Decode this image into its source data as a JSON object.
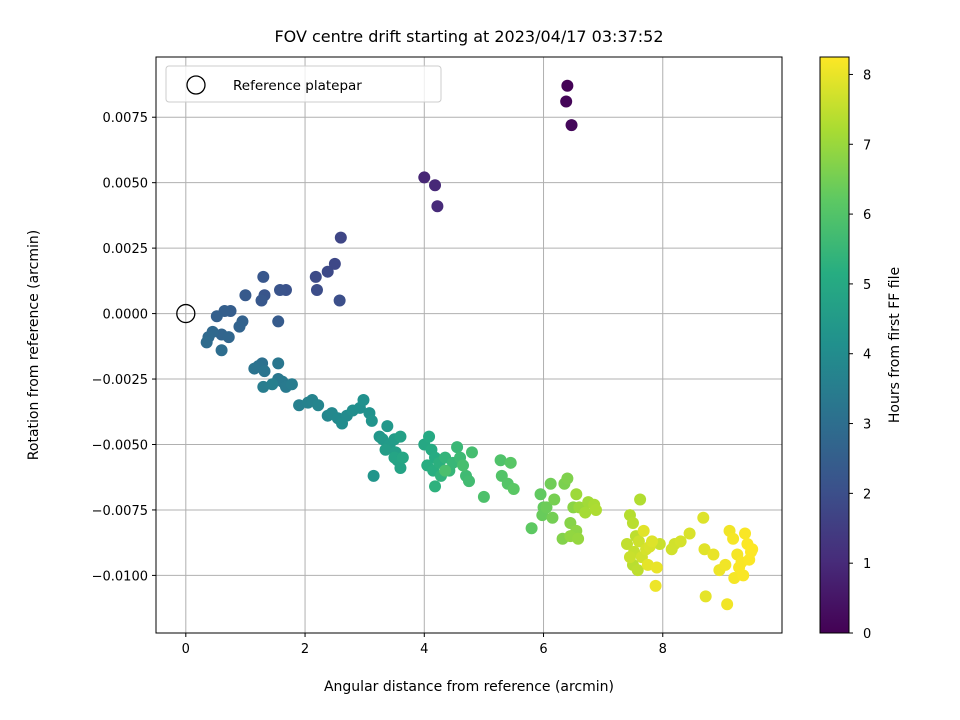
{
  "chart_data": {
    "type": "scatter",
    "title": "FOV centre drift starting at 2023/04/17 03:37:52",
    "xlabel": "Angular distance from reference (arcmin)",
    "ylabel": "Rotation from reference (arcmin)",
    "xlim": [
      -0.5,
      10.0
    ],
    "ylim": [
      -0.0122,
      0.0098
    ],
    "xticks": [
      0,
      2,
      4,
      6,
      8
    ],
    "xtick_labels": [
      "0",
      "2",
      "4",
      "6",
      "8"
    ],
    "yticks": [
      -0.01,
      -0.0075,
      -0.005,
      -0.0025,
      0.0,
      0.0025,
      0.005,
      0.0075
    ],
    "ytick_labels": [
      "−0.0100",
      "−0.0075",
      "−0.0050",
      "−0.0025",
      "0.0000",
      "0.0025",
      "0.0050",
      "0.0075"
    ],
    "grid": true,
    "legend": {
      "position": "top-left",
      "entries": [
        "Reference platepar"
      ]
    },
    "reference_point": {
      "x": 0,
      "y": 0
    },
    "colorbar": {
      "label": "Hours from first FF file",
      "colormap": "viridis",
      "range": [
        0,
        8.25
      ],
      "ticks": [
        "0",
        "1",
        "2",
        "3",
        "4",
        "5",
        "6",
        "7",
        "8"
      ]
    },
    "series": [
      {
        "points": [
          [
            6.4,
            0.0087,
            0.05
          ],
          [
            6.38,
            0.0081,
            0.1
          ],
          [
            6.47,
            0.0072,
            0.15
          ],
          [
            4.0,
            0.0052,
            0.9
          ],
          [
            4.18,
            0.0049,
            0.95
          ],
          [
            4.22,
            0.0041,
            1.0
          ],
          [
            2.6,
            0.0029,
            1.75
          ],
          [
            2.5,
            0.0019,
            1.8
          ],
          [
            2.38,
            0.0016,
            1.85
          ],
          [
            2.18,
            0.0014,
            1.9
          ],
          [
            2.2,
            0.0009,
            1.95
          ],
          [
            2.58,
            0.0005,
            2.0
          ],
          [
            1.68,
            0.0009,
            2.1
          ],
          [
            1.58,
            0.0009,
            2.15
          ],
          [
            1.32,
            0.0007,
            2.2
          ],
          [
            1.3,
            0.0014,
            2.25
          ],
          [
            1.27,
            0.0005,
            2.3
          ],
          [
            1.0,
            0.0007,
            2.35
          ],
          [
            1.55,
            -0.0003,
            2.4
          ],
          [
            0.75,
            0.0001,
            2.45
          ],
          [
            0.65,
            0.0001,
            2.5
          ],
          [
            0.52,
            -0.0001,
            2.55
          ],
          [
            0.95,
            -0.0003,
            2.6
          ],
          [
            0.9,
            -0.0005,
            2.65
          ],
          [
            0.6,
            -0.0008,
            2.7
          ],
          [
            0.72,
            -0.0009,
            2.75
          ],
          [
            0.45,
            -0.0007,
            2.8
          ],
          [
            0.38,
            -0.0009,
            2.85
          ],
          [
            0.35,
            -0.0011,
            2.9
          ],
          [
            0.6,
            -0.0014,
            2.95
          ],
          [
            1.28,
            -0.0019,
            3.05
          ],
          [
            1.22,
            -0.002,
            3.1
          ],
          [
            1.15,
            -0.0021,
            3.15
          ],
          [
            1.32,
            -0.0022,
            3.2
          ],
          [
            1.55,
            -0.0019,
            3.25
          ],
          [
            1.55,
            -0.0025,
            3.3
          ],
          [
            1.62,
            -0.0026,
            3.35
          ],
          [
            1.68,
            -0.0028,
            3.4
          ],
          [
            1.78,
            -0.0027,
            3.45
          ],
          [
            1.3,
            -0.0028,
            3.5
          ],
          [
            1.45,
            -0.0027,
            3.55
          ],
          [
            1.9,
            -0.0035,
            3.6
          ],
          [
            2.05,
            -0.0034,
            3.65
          ],
          [
            2.12,
            -0.0033,
            3.7
          ],
          [
            2.22,
            -0.0035,
            3.75
          ],
          [
            2.38,
            -0.0039,
            3.8
          ],
          [
            2.45,
            -0.0038,
            3.85
          ],
          [
            2.55,
            -0.004,
            3.9
          ],
          [
            2.7,
            -0.0039,
            3.95
          ],
          [
            2.62,
            -0.0042,
            4.0
          ],
          [
            2.8,
            -0.0037,
            4.05
          ],
          [
            2.92,
            -0.0036,
            4.1
          ],
          [
            2.98,
            -0.0033,
            4.15
          ],
          [
            3.08,
            -0.0038,
            4.2
          ],
          [
            3.12,
            -0.0041,
            4.25
          ],
          [
            3.15,
            -0.0062,
            4.3
          ],
          [
            3.25,
            -0.0047,
            4.35
          ],
          [
            3.38,
            -0.0043,
            4.4
          ],
          [
            3.3,
            -0.0048,
            4.45
          ],
          [
            3.42,
            -0.005,
            4.5
          ],
          [
            3.5,
            -0.0048,
            4.55
          ],
          [
            3.35,
            -0.0052,
            4.6
          ],
          [
            3.52,
            -0.0053,
            4.65
          ],
          [
            3.6,
            -0.0047,
            4.7
          ],
          [
            3.55,
            -0.0056,
            4.75
          ],
          [
            3.6,
            -0.0059,
            4.8
          ],
          [
            3.5,
            -0.0055,
            4.85
          ],
          [
            3.64,
            -0.0055,
            4.9
          ],
          [
            4.0,
            -0.005,
            4.95
          ],
          [
            4.08,
            -0.0047,
            5.0
          ],
          [
            4.12,
            -0.0052,
            5.05
          ],
          [
            4.18,
            -0.0055,
            5.1
          ],
          [
            4.05,
            -0.0058,
            5.15
          ],
          [
            4.15,
            -0.006,
            5.2
          ],
          [
            4.25,
            -0.0057,
            5.25
          ],
          [
            4.18,
            -0.0066,
            5.3
          ],
          [
            4.28,
            -0.0062,
            5.35
          ],
          [
            4.35,
            -0.0055,
            5.4
          ],
          [
            4.42,
            -0.006,
            5.45
          ],
          [
            4.48,
            -0.0057,
            5.5
          ],
          [
            4.55,
            -0.0051,
            5.55
          ],
          [
            4.6,
            -0.0055,
            5.6
          ],
          [
            4.7,
            -0.0062,
            5.65
          ],
          [
            4.75,
            -0.0064,
            5.7
          ],
          [
            4.8,
            -0.0053,
            5.75
          ],
          [
            4.65,
            -0.0058,
            5.8
          ],
          [
            4.35,
            -0.006,
            5.85
          ],
          [
            5.0,
            -0.007,
            5.9
          ],
          [
            5.28,
            -0.0056,
            5.95
          ],
          [
            5.3,
            -0.0062,
            6.0
          ],
          [
            5.4,
            -0.0065,
            6.05
          ],
          [
            5.45,
            -0.0057,
            6.1
          ],
          [
            5.5,
            -0.0067,
            6.15
          ],
          [
            5.8,
            -0.0082,
            6.2
          ],
          [
            5.95,
            -0.0069,
            6.25
          ],
          [
            6.0,
            -0.0074,
            6.3
          ],
          [
            5.98,
            -0.0077,
            6.35
          ],
          [
            6.05,
            -0.0074,
            6.4
          ],
          [
            6.12,
            -0.0065,
            6.45
          ],
          [
            6.15,
            -0.0078,
            6.5
          ],
          [
            6.18,
            -0.0071,
            6.55
          ],
          [
            6.35,
            -0.0065,
            6.6
          ],
          [
            6.4,
            -0.0063,
            6.65
          ],
          [
            6.32,
            -0.0086,
            6.7
          ],
          [
            6.45,
            -0.008,
            6.75
          ],
          [
            6.5,
            -0.0074,
            6.8
          ],
          [
            6.55,
            -0.0083,
            6.85
          ],
          [
            6.45,
            -0.0085,
            6.9
          ],
          [
            6.58,
            -0.0086,
            6.95
          ],
          [
            6.6,
            -0.0074,
            7.0
          ],
          [
            6.55,
            -0.0069,
            7.05
          ],
          [
            6.75,
            -0.0072,
            7.1
          ],
          [
            6.7,
            -0.0076,
            7.15
          ],
          [
            6.85,
            -0.0073,
            7.2
          ],
          [
            6.88,
            -0.0075,
            7.25
          ],
          [
            7.62,
            -0.0071,
            7.3
          ],
          [
            7.45,
            -0.0077,
            7.35
          ],
          [
            7.5,
            -0.008,
            7.4
          ],
          [
            7.55,
            -0.0085,
            7.45
          ],
          [
            7.4,
            -0.0088,
            7.5
          ],
          [
            7.52,
            -0.0091,
            7.55
          ],
          [
            7.45,
            -0.0093,
            7.6
          ],
          [
            7.6,
            -0.0087,
            7.65
          ],
          [
            7.65,
            -0.0093,
            7.7
          ],
          [
            7.72,
            -0.009,
            7.75
          ],
          [
            7.78,
            -0.0089,
            7.8
          ],
          [
            7.82,
            -0.0087,
            7.85
          ],
          [
            7.68,
            -0.0083,
            7.9
          ],
          [
            7.75,
            -0.0096,
            7.95
          ],
          [
            7.9,
            -0.0097,
            8.0
          ],
          [
            7.88,
            -0.0104,
            8.05
          ],
          [
            7.5,
            -0.0096,
            7.4
          ],
          [
            7.58,
            -0.0098,
            7.45
          ],
          [
            7.95,
            -0.0088,
            7.6
          ],
          [
            8.2,
            -0.0088,
            7.7
          ],
          [
            8.3,
            -0.0087,
            7.75
          ],
          [
            8.45,
            -0.0084,
            7.8
          ],
          [
            8.68,
            -0.0078,
            7.85
          ],
          [
            8.7,
            -0.009,
            7.9
          ],
          [
            8.72,
            -0.0108,
            7.95
          ],
          [
            8.85,
            -0.0092,
            8.0
          ],
          [
            8.95,
            -0.0098,
            8.05
          ],
          [
            9.08,
            -0.0111,
            8.1
          ],
          [
            9.12,
            -0.0083,
            8.1
          ],
          [
            9.18,
            -0.0086,
            8.15
          ],
          [
            9.2,
            -0.0101,
            8.15
          ],
          [
            9.25,
            -0.0092,
            8.15
          ],
          [
            9.28,
            -0.0097,
            8.2
          ],
          [
            9.32,
            -0.0095,
            8.2
          ],
          [
            9.38,
            -0.0084,
            8.2
          ],
          [
            9.35,
            -0.01,
            8.2
          ],
          [
            9.42,
            -0.0088,
            8.22
          ],
          [
            9.45,
            -0.0094,
            8.23
          ],
          [
            9.48,
            -0.0091,
            8.25
          ],
          [
            9.5,
            -0.009,
            8.25
          ],
          [
            9.05,
            -0.0096,
            8.1
          ],
          [
            8.15,
            -0.009,
            7.7
          ]
        ],
        "point_format": [
          "x",
          "y",
          "hours"
        ]
      }
    ]
  }
}
